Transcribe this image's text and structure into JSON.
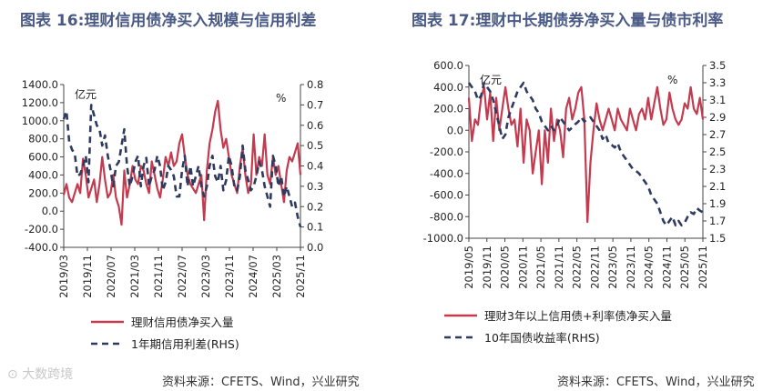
{
  "watermark": "大数跨境",
  "chart_data": [
    {
      "type": "line",
      "title": "图表 16:理财信用债净买入规模与信用利差",
      "source": "资料来源：CFETS、Wind，兴业研究",
      "left_unit": "亿元",
      "right_unit": "%",
      "ylim_left": [
        -400,
        1400
      ],
      "yticks_left": [
        "-400.0",
        "-200.0",
        "0.0",
        "200.0",
        "400.0",
        "600.0",
        "800.0",
        "1000.0",
        "1200.0",
        "1400.0"
      ],
      "ylim_right": [
        0,
        0.8
      ],
      "yticks_right": [
        "0.0",
        "0.1",
        "0.2",
        "0.3",
        "0.4",
        "0.5",
        "0.6",
        "0.7",
        "0.8"
      ],
      "x_start": "2019-03",
      "x_end": "2025-11",
      "xticks": [
        "2019/03",
        "2019/11",
        "2020/07",
        "2021/03",
        "2021/11",
        "2022/07",
        "2023/03",
        "2023/11",
        "2024/07",
        "2025/03",
        "2025/11"
      ],
      "series": [
        {
          "name": "理财信用债净买入量",
          "axis": "left",
          "color": "#c43a4f",
          "values": [
            180,
            300,
            150,
            100,
            200,
            300,
            200,
            580,
            400,
            150,
            250,
            350,
            100,
            300,
            600,
            350,
            150,
            200,
            400,
            150,
            50,
            -150,
            450,
            150,
            300,
            500,
            350,
            300,
            500,
            450,
            300,
            200,
            550,
            400,
            250,
            150,
            350,
            600,
            500,
            650,
            500,
            550,
            750,
            850,
            600,
            400,
            300,
            250,
            200,
            300,
            400,
            -100,
            450,
            750,
            900,
            1100,
            1220,
            900,
            700,
            800,
            600,
            400,
            300,
            200,
            500,
            700,
            400,
            200,
            300,
            850,
            400,
            600,
            500,
            850,
            400,
            300,
            600,
            400,
            500,
            300,
            100,
            450,
            600,
            550,
            650,
            750,
            400
          ]
        },
        {
          "name": "1年期信用利差(RHS)",
          "axis": "right",
          "color": "#2f3a5f",
          "values": [
            0.63,
            0.67,
            0.52,
            0.48,
            0.46,
            0.35,
            0.36,
            0.4,
            0.45,
            0.32,
            0.7,
            0.65,
            0.6,
            0.58,
            0.5,
            0.55,
            0.45,
            0.38,
            0.3,
            0.4,
            0.42,
            0.5,
            0.58,
            0.4,
            0.3,
            0.35,
            0.42,
            0.45,
            0.3,
            0.4,
            0.44,
            0.3,
            0.35,
            0.38,
            0.45,
            0.4,
            0.28,
            0.32,
            0.4,
            0.38,
            0.35,
            0.25,
            0.25,
            0.38,
            0.45,
            0.3,
            0.4,
            0.3,
            0.35,
            0.4,
            0.3,
            0.25,
            0.3,
            0.4,
            0.45,
            0.35,
            0.32,
            0.4,
            0.28,
            0.33,
            0.45,
            0.4,
            0.3,
            0.28,
            0.35,
            0.5,
            0.38,
            0.33,
            0.28,
            0.3,
            0.35,
            0.42,
            0.38,
            0.3,
            0.25,
            0.2,
            0.45,
            0.4,
            0.3,
            0.35,
            0.25,
            0.3,
            0.25,
            0.2,
            0.22,
            0.15,
            0.1
          ]
        }
      ]
    },
    {
      "type": "line",
      "title": "图表 17:理财中长期债券净买入量与债市利率",
      "source": "资料来源：CFETS、Wind，兴业研究",
      "left_unit": "亿元",
      "right_unit": "%",
      "ylim_left": [
        -1000,
        600
      ],
      "yticks_left": [
        "-1000.0",
        "-800.0",
        "-600.0",
        "-400.0",
        "-200.0",
        "0.0",
        "200.0",
        "400.0",
        "600.0"
      ],
      "ylim_right": [
        1.5,
        3.5
      ],
      "yticks_right": [
        "1.5",
        "1.7",
        "1.9",
        "2.1",
        "2.3",
        "2.5",
        "2.7",
        "2.9",
        "3.1",
        "3.3",
        "3.5"
      ],
      "x_start": "2019-05",
      "x_end": "2025-11",
      "xticks": [
        "2019/05",
        "2019/11",
        "2020/05",
        "2020/11",
        "2021/05",
        "2021/11",
        "2022/05",
        "2022/11",
        "2023/05",
        "2023/11",
        "2024/05",
        "2024/11",
        "2025/05",
        "2025/11"
      ],
      "series": [
        {
          "name": "理财3年以上信用债+利率债净买入量",
          "axis": "left",
          "color": "#c43a4f",
          "values": [
            300,
            -100,
            100,
            50,
            300,
            400,
            100,
            350,
            -100,
            300,
            0,
            200,
            400,
            200,
            50,
            100,
            -150,
            200,
            -300,
            100,
            0,
            -400,
            -200,
            0,
            -500,
            0,
            -300,
            200,
            -100,
            100,
            0,
            -250,
            200,
            300,
            100,
            200,
            350,
            400,
            100,
            -850,
            -300,
            0,
            250,
            100,
            0,
            100,
            200,
            100,
            0,
            200,
            100,
            50,
            0,
            200,
            100,
            0,
            150,
            200,
            100,
            300,
            100,
            250,
            400,
            200,
            50,
            100,
            350,
            200,
            100,
            50,
            100,
            250,
            200,
            400,
            200,
            150,
            300,
            100
          ]
        },
        {
          "name": "10年国债收益率(RHS)",
          "axis": "right",
          "color": "#2f3a5f",
          "values": [
            3.3,
            3.25,
            3.2,
            3.1,
            3.15,
            3.3,
            3.25,
            3.2,
            3.1,
            2.95,
            2.8,
            2.65,
            2.7,
            2.9,
            3.0,
            3.1,
            3.2,
            3.25,
            3.3,
            3.2,
            3.15,
            3.1,
            3.0,
            2.95,
            2.85,
            2.8,
            2.75,
            2.8,
            2.75,
            2.8,
            2.9,
            2.85,
            2.8,
            2.75,
            2.78,
            2.82,
            2.85,
            2.9,
            2.85,
            2.88,
            2.9,
            2.85,
            2.8,
            2.75,
            2.65,
            2.7,
            2.6,
            2.58,
            2.55,
            2.6,
            2.5,
            2.45,
            2.4,
            2.35,
            2.3,
            2.28,
            2.25,
            2.2,
            2.15,
            2.1,
            2.0,
            1.95,
            1.9,
            1.8,
            1.7,
            1.65,
            1.7,
            1.75,
            1.65,
            1.7,
            1.65,
            1.68,
            1.75,
            1.8,
            1.78,
            1.85,
            1.82,
            1.8
          ]
        }
      ]
    }
  ]
}
